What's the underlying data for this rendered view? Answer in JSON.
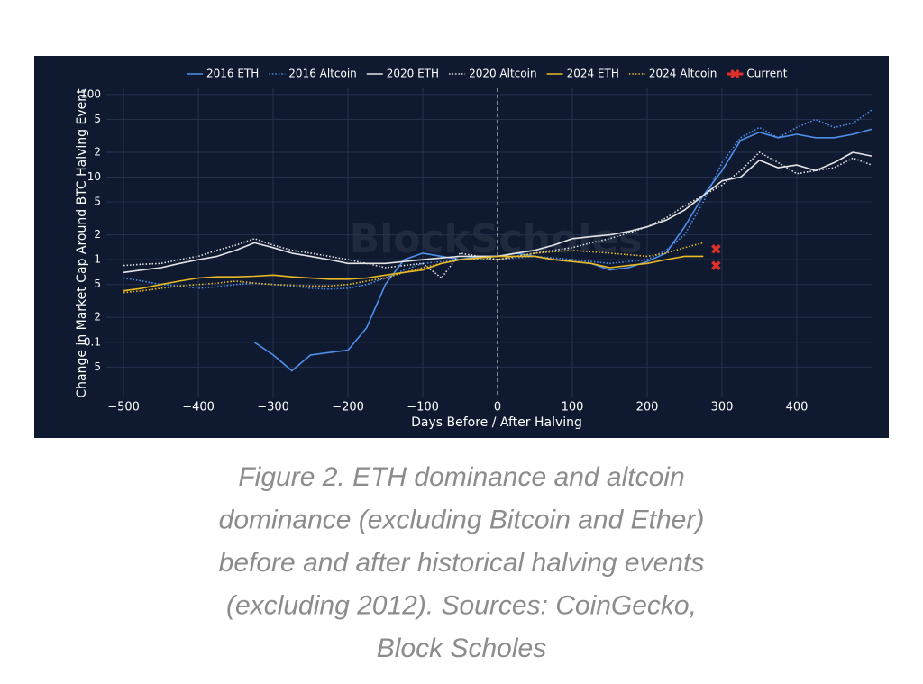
{
  "chart_data": {
    "type": "line",
    "xlabel": "Days Before / After Halving",
    "ylabel": "Change in Market Cap Around BTC Halving Event",
    "watermark": "BlockScholes",
    "x": [
      -500,
      -475,
      -450,
      -425,
      -400,
      -375,
      -350,
      -325,
      -300,
      -275,
      -250,
      -225,
      -200,
      -175,
      -150,
      -125,
      -100,
      -75,
      -50,
      -25,
      0,
      25,
      50,
      75,
      100,
      125,
      150,
      175,
      200,
      225,
      250,
      275,
      300,
      325,
      350,
      375,
      400,
      425,
      450,
      475,
      500
    ],
    "series": [
      {
        "name": "2016 ETH",
        "color": "#4f8fe8",
        "dash": "solid",
        "values": [
          null,
          null,
          null,
          null,
          null,
          null,
          null,
          0.1,
          0.07,
          0.045,
          0.07,
          0.075,
          0.08,
          0.15,
          0.5,
          1.0,
          1.2,
          1.1,
          1.0,
          1.1,
          1.1,
          1.2,
          1.1,
          1.0,
          0.95,
          0.9,
          0.75,
          0.8,
          0.95,
          1.2,
          2.5,
          6,
          12,
          28,
          35,
          30,
          33,
          30,
          30,
          33,
          38
        ]
      },
      {
        "name": "2016 Altcoin",
        "color": "#4f8fe8",
        "dash": "dotted",
        "values": [
          0.6,
          0.55,
          0.5,
          0.48,
          0.45,
          0.47,
          0.5,
          0.52,
          0.5,
          0.48,
          0.45,
          0.44,
          0.45,
          0.5,
          0.6,
          0.75,
          0.9,
          0.95,
          1.0,
          1.0,
          1.0,
          1.05,
          1.1,
          1.05,
          1.0,
          0.95,
          0.9,
          0.95,
          1.0,
          1.3,
          2,
          5,
          15,
          30,
          40,
          30,
          40,
          50,
          40,
          45,
          65
        ]
      },
      {
        "name": "2020 ETH",
        "color": "#e4e4e4",
        "dash": "solid",
        "values": [
          0.7,
          0.75,
          0.8,
          0.9,
          1.0,
          1.1,
          1.3,
          1.6,
          1.4,
          1.2,
          1.1,
          1.0,
          0.9,
          0.9,
          0.9,
          0.95,
          1.0,
          1.05,
          1.1,
          1.1,
          1.1,
          1.2,
          1.3,
          1.5,
          1.8,
          1.9,
          2.0,
          2.2,
          2.5,
          3,
          4,
          6,
          9,
          10,
          16,
          13,
          14,
          12,
          15,
          20,
          18
        ]
      },
      {
        "name": "2020 Altcoin",
        "color": "#e4e4e4",
        "dash": "dotted",
        "values": [
          0.85,
          0.88,
          0.9,
          1.0,
          1.1,
          1.3,
          1.5,
          1.8,
          1.5,
          1.3,
          1.2,
          1.1,
          1.0,
          0.9,
          0.8,
          0.85,
          0.9,
          0.6,
          1.2,
          1.1,
          1.0,
          1.1,
          1.2,
          1.3,
          1.4,
          1.6,
          1.8,
          2.1,
          2.5,
          3.2,
          4.5,
          6,
          8,
          12,
          20,
          15,
          11,
          12,
          13,
          17,
          14
        ]
      },
      {
        "name": "2024 ETH",
        "color": "#e8b923",
        "dash": "solid",
        "values": [
          0.42,
          0.45,
          0.5,
          0.55,
          0.6,
          0.62,
          0.62,
          0.63,
          0.65,
          0.62,
          0.6,
          0.58,
          0.58,
          0.6,
          0.65,
          0.7,
          0.75,
          0.9,
          1.0,
          1.05,
          1.1,
          1.1,
          1.1,
          1.0,
          0.95,
          0.9,
          0.8,
          0.85,
          0.9,
          1.0,
          1.1,
          1.1,
          null,
          null,
          null,
          null,
          null,
          null,
          null,
          null,
          null
        ]
      },
      {
        "name": "2024 Altcoin",
        "color": "#e8b923",
        "dash": "dotted",
        "values": [
          0.4,
          0.42,
          0.45,
          0.48,
          0.5,
          0.52,
          0.55,
          0.52,
          0.5,
          0.49,
          0.48,
          0.48,
          0.5,
          0.55,
          0.6,
          0.7,
          0.8,
          0.9,
          1.0,
          1.0,
          1.0,
          1.1,
          1.2,
          1.25,
          1.3,
          1.25,
          1.2,
          1.15,
          1.1,
          1.2,
          1.4,
          1.6,
          null,
          null,
          null,
          null,
          null,
          null,
          null,
          null,
          null
        ]
      }
    ],
    "current": {
      "name": "Current",
      "color": "#e0302a",
      "x": [
        292,
        292
      ],
      "values": [
        1.35,
        0.85
      ]
    },
    "vline": 0,
    "xlim": [
      -523,
      500
    ],
    "xticks": [
      {
        "value": -500,
        "label": "−500"
      },
      {
        "value": -400,
        "label": "−400"
      },
      {
        "value": -300,
        "label": "−300"
      },
      {
        "value": -200,
        "label": "−200"
      },
      {
        "value": -100,
        "label": "−100"
      },
      0,
      100,
      200,
      300,
      400
    ],
    "ylim": [
      0.022,
      119
    ],
    "ylog": true,
    "yticks": [
      100,
      {
        "value": 50,
        "label": "5"
      },
      {
        "value": 20,
        "label": "2"
      },
      10,
      {
        "value": 5,
        "label": "5"
      },
      {
        "value": 2,
        "label": "2"
      },
      1,
      {
        "value": 0.5,
        "label": "5"
      },
      {
        "value": 0.2,
        "label": "2"
      },
      0.1,
      {
        "value": 0.05,
        "label": "5"
      }
    ],
    "grid": true,
    "background": "#0f1a31"
  },
  "caption": [
    "Figure 2. ETH dominance and altcoin",
    "dominance (excluding Bitcoin and Ether)",
    "before and after historical halving events",
    "(excluding 2012). Sources: CoinGecko,",
    "Block Scholes"
  ]
}
